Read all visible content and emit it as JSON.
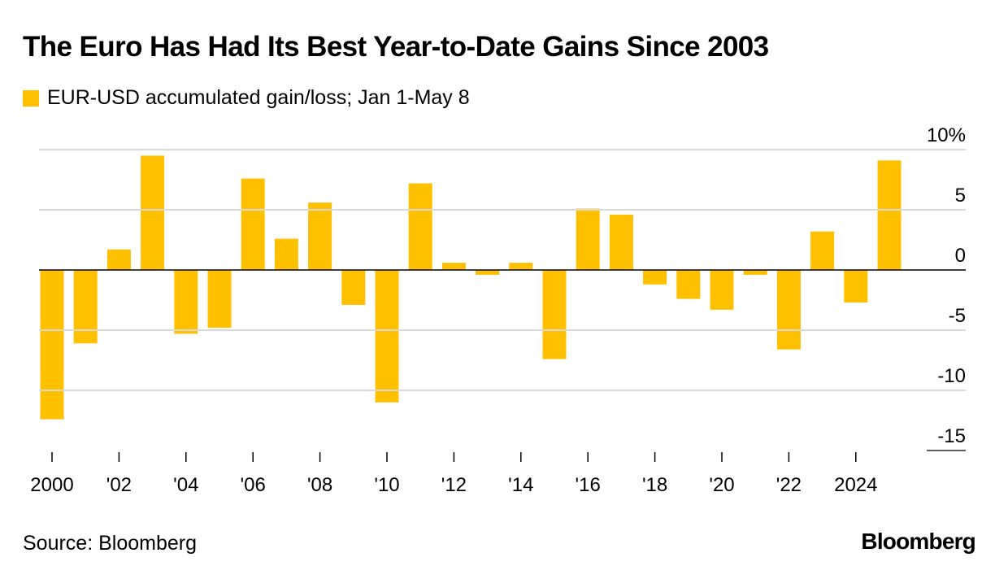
{
  "chart_data": {
    "type": "bar",
    "title": "The Euro Has Had Its Best Year-to-Date Gains Since 2003",
    "subtitle": "",
    "legend": "EUR-USD accumulated gain/loss; Jan 1-May 8",
    "legend_placement": "top-left",
    "color": "#FFC000",
    "grid": true,
    "y_axis_side": "right",
    "ylim": [
      -15,
      10
    ],
    "y_ticks": [
      {
        "value": 10,
        "label": "10%"
      },
      {
        "value": 5,
        "label": "5"
      },
      {
        "value": 0,
        "label": "0"
      },
      {
        "value": -5,
        "label": "-5"
      },
      {
        "value": -10,
        "label": "-10"
      },
      {
        "value": -15,
        "label": "-15"
      }
    ],
    "x_tick_labels": [
      "2000",
      "'02",
      "'04",
      "'06",
      "'08",
      "'10",
      "'12",
      "'14",
      "'16",
      "'18",
      "'20",
      "'22",
      "2024"
    ],
    "categories": [
      2000,
      2001,
      2002,
      2003,
      2004,
      2005,
      2006,
      2007,
      2008,
      2009,
      2010,
      2011,
      2012,
      2013,
      2014,
      2015,
      2016,
      2017,
      2018,
      2019,
      2020,
      2021,
      2022,
      2023,
      2024,
      2025
    ],
    "values": [
      -12.4,
      -6.1,
      1.7,
      9.5,
      -5.3,
      -4.8,
      7.6,
      2.6,
      5.6,
      -2.9,
      -11.0,
      7.2,
      0.6,
      -0.4,
      0.6,
      -7.4,
      5.1,
      4.6,
      -1.2,
      -2.4,
      -3.3,
      -0.4,
      -6.6,
      3.2,
      -2.7,
      9.1
    ],
    "source": "Source: Bloomberg",
    "brand": "Bloomberg"
  }
}
